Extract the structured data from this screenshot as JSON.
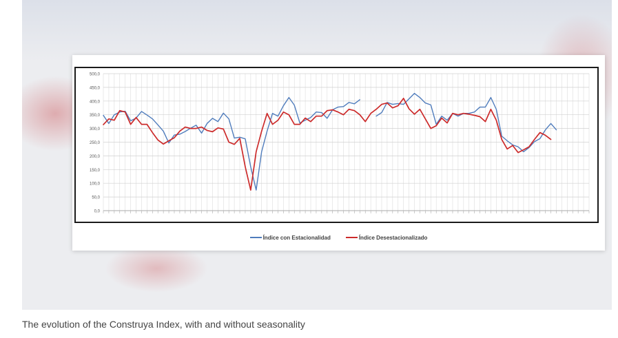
{
  "caption": "The evolution of the Construya Index, with and without seasonality",
  "colors": {
    "series_blue": "#4f7cbc",
    "series_red": "#cc2a2a"
  },
  "chart_data": {
    "type": "line",
    "title": "",
    "xlabel": "",
    "ylabel": "",
    "ylim": [
      0,
      500
    ],
    "yticks": [
      0,
      50,
      100,
      150,
      200,
      250,
      300,
      350,
      400,
      450,
      500
    ],
    "ytick_labels": [
      "0,0",
      "50,0",
      "100,0",
      "150,0",
      "200,0",
      "250,0",
      "300,0",
      "350,0",
      "400,0",
      "450,0",
      "500,0"
    ],
    "grid": true,
    "legend": "bottom",
    "n_points": 90,
    "series": [
      {
        "name": "Índice con Estacionalidad",
        "color": "#4f7cbc",
        "values": [
          348,
          318,
          350,
          360,
          363,
          328,
          338,
          362,
          349,
          335,
          313,
          290,
          247,
          276,
          279,
          289,
          301,
          312,
          283,
          318,
          337,
          325,
          356,
          335,
          265,
          268,
          262,
          160,
          75,
          215,
          290,
          355,
          345,
          383,
          413,
          385,
          320,
          330,
          340,
          360,
          358,
          337,
          368,
          378,
          380,
          395,
          390,
          405,
          null,
          null,
          345,
          358,
          395,
          388,
          391,
          388,
          408,
          428,
          413,
          393,
          386,
          315,
          345,
          330,
          355,
          345,
          355,
          355,
          360,
          378,
          378,
          413,
          370,
          272,
          255,
          240,
          233,
          215,
          230,
          252,
          263,
          295,
          318,
          295,
          null,
          null,
          null,
          null,
          null,
          null
        ]
      },
      {
        "name": "Índice Desestacionalizado",
        "color": "#cc2a2a",
        "values": [
          314,
          335,
          330,
          365,
          360,
          315,
          340,
          315,
          315,
          285,
          258,
          243,
          255,
          266,
          290,
          305,
          300,
          300,
          305,
          293,
          288,
          302,
          298,
          250,
          242,
          264,
          160,
          75,
          215,
          290,
          355,
          315,
          330,
          360,
          350,
          315,
          315,
          338,
          325,
          345,
          345,
          365,
          368,
          360,
          350,
          370,
          365,
          350,
          325,
          355,
          370,
          388,
          393,
          375,
          383,
          410,
          372,
          352,
          370,
          335,
          300,
          310,
          338,
          320,
          355,
          350,
          355,
          352,
          348,
          343,
          325,
          370,
          330,
          260,
          225,
          238,
          212,
          222,
          233,
          260,
          285,
          275,
          260,
          null,
          null,
          null,
          null,
          null,
          null,
          null
        ]
      }
    ]
  }
}
